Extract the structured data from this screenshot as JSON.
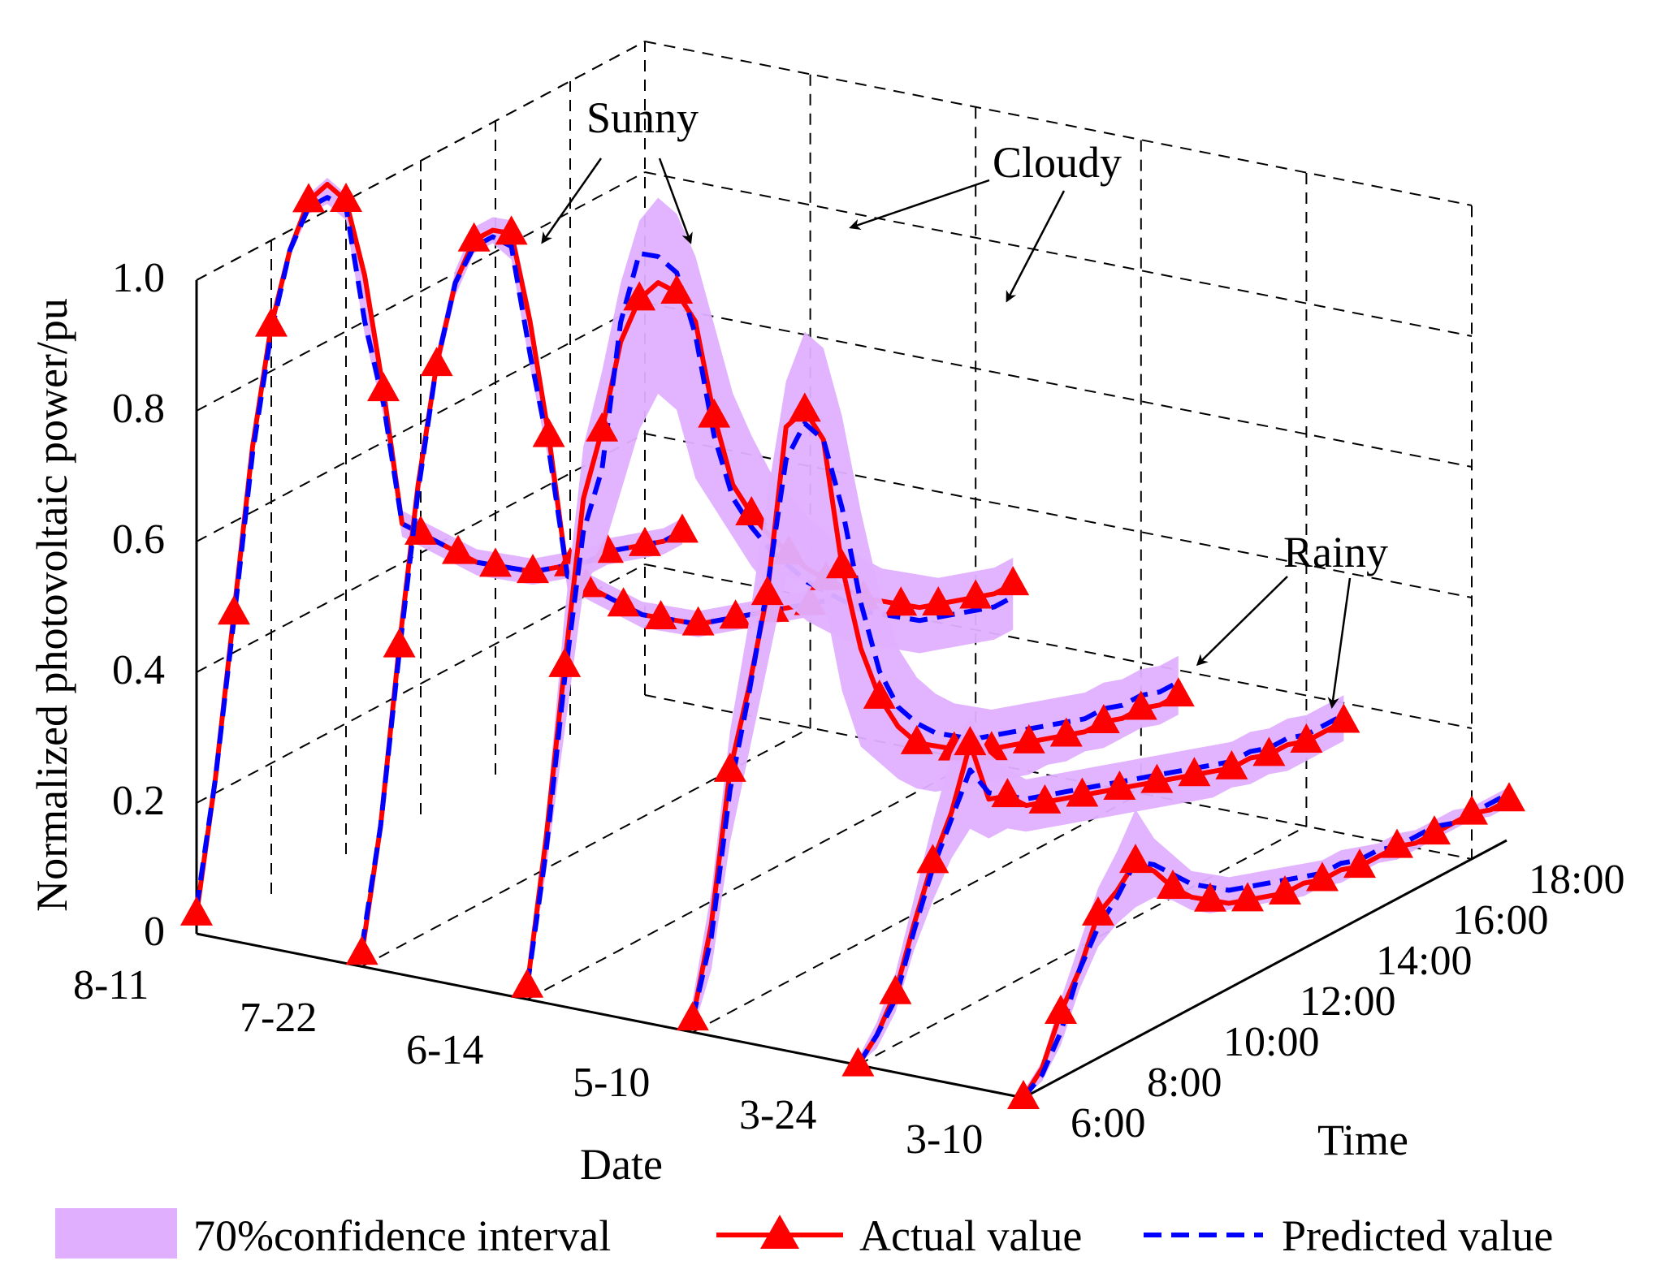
{
  "chart_data": {
    "type": "line",
    "subtype": "3d-waterfall",
    "title": "",
    "ylabel": "Normalized photovoltaic power/pu",
    "xlabel": "Date",
    "zlabel": "Time",
    "ylim": [
      0,
      1
    ],
    "yticks": [
      "0",
      "0.2",
      "0.4",
      "0.6",
      "0.8",
      "1.0"
    ],
    "date_ticks": [
      "8-11",
      "7-22",
      "6-14",
      "5-10",
      "3-24",
      "3-10"
    ],
    "time_ticks": [
      "6:00",
      "8:00",
      "10:00",
      "12:00",
      "14:00",
      "16:00",
      "18:00"
    ],
    "x_hours": [
      6,
      6.5,
      7,
      7.5,
      8,
      8.5,
      9,
      9.5,
      10,
      10.5,
      11,
      11.5,
      12,
      12.5,
      13,
      13.5,
      14,
      14.5,
      15,
      15.5,
      16,
      16.5,
      17,
      17.5,
      18,
      18.5,
      19
    ],
    "grid": true,
    "series": [
      {
        "date": "8-11",
        "weather": "Sunny",
        "actual": [
          0.03,
          0.22,
          0.46,
          0.7,
          0.87,
          0.97,
          1.03,
          1.04,
          1.0,
          0.87,
          0.68,
          0.46,
          0.43,
          0.4,
          0.37,
          0.34,
          0.32,
          0.3,
          0.28,
          0.27,
          0.26,
          0.25,
          0.25,
          0.24,
          0.23,
          0.22,
          0.22
        ],
        "predicted": [
          0.04,
          0.22,
          0.45,
          0.69,
          0.86,
          0.97,
          1.02,
          1.02,
          0.99,
          0.8,
          0.66,
          0.46,
          0.43,
          0.4,
          0.37,
          0.34,
          0.32,
          0.3,
          0.28,
          0.27,
          0.26,
          0.25,
          0.25,
          0.24,
          0.23,
          0.22,
          0.22
        ],
        "ci_lower": [
          0.02,
          0.21,
          0.44,
          0.68,
          0.85,
          0.96,
          1.01,
          1.01,
          0.97,
          0.78,
          0.64,
          0.44,
          0.41,
          0.38,
          0.35,
          0.32,
          0.3,
          0.28,
          0.26,
          0.25,
          0.24,
          0.23,
          0.23,
          0.22,
          0.21,
          0.2,
          0.2
        ],
        "ci_upper": [
          0.05,
          0.23,
          0.47,
          0.71,
          0.88,
          0.98,
          1.04,
          1.05,
          1.01,
          0.88,
          0.7,
          0.48,
          0.45,
          0.42,
          0.39,
          0.36,
          0.34,
          0.32,
          0.3,
          0.29,
          0.28,
          0.27,
          0.27,
          0.26,
          0.25,
          0.24,
          0.24
        ]
      },
      {
        "date": "7-22",
        "weather": "Sunny",
        "actual": [
          0.02,
          0.2,
          0.46,
          0.69,
          0.86,
          0.97,
          1.02,
          1.02,
          1.0,
          0.85,
          0.66,
          0.43,
          0.4,
          0.37,
          0.34,
          0.31,
          0.29,
          0.27,
          0.25,
          0.24,
          0.23,
          0.22,
          0.21,
          0.2,
          0.19,
          0.18,
          0.18
        ],
        "predicted": [
          0.03,
          0.2,
          0.45,
          0.68,
          0.86,
          0.97,
          1.01,
          1.01,
          0.98,
          0.8,
          0.64,
          0.43,
          0.4,
          0.37,
          0.34,
          0.31,
          0.29,
          0.27,
          0.25,
          0.24,
          0.23,
          0.22,
          0.21,
          0.2,
          0.19,
          0.18,
          0.18
        ],
        "ci_lower": [
          0.01,
          0.18,
          0.43,
          0.66,
          0.84,
          0.95,
          1.0,
          1.0,
          0.96,
          0.78,
          0.62,
          0.41,
          0.38,
          0.35,
          0.32,
          0.29,
          0.27,
          0.25,
          0.23,
          0.22,
          0.21,
          0.2,
          0.19,
          0.18,
          0.17,
          0.16,
          0.16
        ],
        "ci_upper": [
          0.04,
          0.22,
          0.48,
          0.71,
          0.88,
          0.99,
          1.04,
          1.04,
          1.02,
          0.87,
          0.68,
          0.45,
          0.42,
          0.39,
          0.36,
          0.33,
          0.31,
          0.29,
          0.27,
          0.26,
          0.25,
          0.24,
          0.23,
          0.22,
          0.21,
          0.2,
          0.2
        ]
      },
      {
        "date": "6-14",
        "weather": "Cloudy",
        "actual": [
          0.02,
          0.23,
          0.48,
          0.72,
          0.81,
          0.93,
          0.98,
          0.99,
          0.96,
          0.9,
          0.74,
          0.62,
          0.56,
          0.51,
          0.47,
          0.43,
          0.4,
          0.37,
          0.34,
          0.32,
          0.3,
          0.28,
          0.27,
          0.26,
          0.25,
          0.24,
          0.24
        ],
        "predicted": [
          0.02,
          0.21,
          0.46,
          0.67,
          0.75,
          0.96,
          1.05,
          1.03,
          0.99,
          0.88,
          0.71,
          0.6,
          0.54,
          0.49,
          0.45,
          0.41,
          0.38,
          0.35,
          0.32,
          0.3,
          0.28,
          0.26,
          0.25,
          0.24,
          0.23,
          0.22,
          0.22
        ],
        "ci_lower": [
          0.01,
          0.18,
          0.38,
          0.58,
          0.62,
          0.7,
          0.78,
          0.82,
          0.78,
          0.66,
          0.6,
          0.54,
          0.48,
          0.43,
          0.39,
          0.35,
          0.32,
          0.29,
          0.27,
          0.25,
          0.23,
          0.21,
          0.2,
          0.19,
          0.18,
          0.17,
          0.17
        ],
        "ci_upper": [
          0.04,
          0.26,
          0.56,
          0.8,
          0.9,
          1.02,
          1.1,
          1.12,
          1.08,
          1.0,
          0.88,
          0.76,
          0.68,
          0.61,
          0.56,
          0.51,
          0.47,
          0.43,
          0.4,
          0.37,
          0.35,
          0.33,
          0.31,
          0.3,
          0.29,
          0.28,
          0.28
        ]
      },
      {
        "date": "5-10",
        "weather": "Cloudy",
        "actual": [
          0.02,
          0.15,
          0.37,
          0.48,
          0.61,
          0.85,
          0.86,
          0.8,
          0.59,
          0.45,
          0.36,
          0.3,
          0.26,
          0.24,
          0.22,
          0.2,
          0.19,
          0.18,
          0.17,
          0.16,
          0.15,
          0.14,
          0.14,
          0.13,
          0.13,
          0.12,
          0.12
        ],
        "predicted": [
          0.02,
          0.13,
          0.34,
          0.47,
          0.62,
          0.8,
          0.84,
          0.8,
          0.68,
          0.52,
          0.4,
          0.33,
          0.29,
          0.26,
          0.24,
          0.22,
          0.21,
          0.2,
          0.19,
          0.18,
          0.17,
          0.16,
          0.16,
          0.15,
          0.15,
          0.14,
          0.14
        ],
        "ci_lower": [
          0.0,
          0.08,
          0.26,
          0.38,
          0.5,
          0.62,
          0.6,
          0.56,
          0.4,
          0.3,
          0.26,
          0.22,
          0.19,
          0.17,
          0.16,
          0.15,
          0.14,
          0.13,
          0.12,
          0.12,
          0.11,
          0.11,
          0.1,
          0.1,
          0.1,
          0.09,
          0.09
        ],
        "ci_upper": [
          0.05,
          0.2,
          0.43,
          0.58,
          0.76,
          0.92,
          0.98,
          0.94,
          0.82,
          0.66,
          0.52,
          0.42,
          0.36,
          0.32,
          0.29,
          0.27,
          0.25,
          0.24,
          0.23,
          0.22,
          0.21,
          0.2,
          0.2,
          0.19,
          0.19,
          0.18,
          0.18
        ]
      },
      {
        "date": "3-24",
        "weather": "Rainy",
        "actual": [
          0.0,
          0.03,
          0.08,
          0.17,
          0.25,
          0.31,
          0.4,
          0.3,
          0.29,
          0.26,
          0.25,
          0.24,
          0.23,
          0.22,
          0.21,
          0.2,
          0.19,
          0.18,
          0.17,
          0.16,
          0.15,
          0.15,
          0.14,
          0.14,
          0.13,
          0.13,
          0.13
        ],
        "predicted": [
          0.0,
          0.03,
          0.07,
          0.16,
          0.24,
          0.3,
          0.36,
          0.31,
          0.29,
          0.27,
          0.26,
          0.25,
          0.24,
          0.23,
          0.22,
          0.21,
          0.2,
          0.19,
          0.18,
          0.17,
          0.16,
          0.16,
          0.15,
          0.15,
          0.14,
          0.14,
          0.14
        ],
        "ci_lower": [
          0.0,
          0.01,
          0.05,
          0.13,
          0.19,
          0.24,
          0.27,
          0.24,
          0.24,
          0.22,
          0.21,
          0.2,
          0.19,
          0.18,
          0.17,
          0.16,
          0.15,
          0.14,
          0.13,
          0.12,
          0.12,
          0.11,
          0.11,
          0.1,
          0.1,
          0.1,
          0.1
        ],
        "ci_upper": [
          0.01,
          0.05,
          0.11,
          0.21,
          0.31,
          0.4,
          0.44,
          0.37,
          0.33,
          0.3,
          0.29,
          0.28,
          0.27,
          0.26,
          0.25,
          0.24,
          0.23,
          0.22,
          0.21,
          0.2,
          0.19,
          0.19,
          0.18,
          0.18,
          0.17,
          0.17,
          0.17
        ]
      },
      {
        "date": "3-10",
        "weather": "Rainy",
        "actual": [
          0.0,
          0.03,
          0.1,
          0.15,
          0.22,
          0.24,
          0.27,
          0.24,
          0.2,
          0.17,
          0.15,
          0.13,
          0.12,
          0.11,
          0.1,
          0.1,
          0.09,
          0.09,
          0.08,
          0.08,
          0.08,
          0.07,
          0.07,
          0.07,
          0.07,
          0.06,
          0.06
        ],
        "predicted": [
          0.0,
          0.02,
          0.07,
          0.15,
          0.2,
          0.23,
          0.27,
          0.25,
          0.22,
          0.19,
          0.17,
          0.15,
          0.14,
          0.13,
          0.12,
          0.11,
          0.1,
          0.1,
          0.09,
          0.09,
          0.08,
          0.08,
          0.08,
          0.07,
          0.07,
          0.07,
          0.07
        ],
        "ci_lower": [
          0.0,
          0.01,
          0.05,
          0.12,
          0.17,
          0.19,
          0.2,
          0.2,
          0.18,
          0.15,
          0.13,
          0.12,
          0.11,
          0.1,
          0.09,
          0.08,
          0.08,
          0.07,
          0.07,
          0.07,
          0.06,
          0.06,
          0.06,
          0.06,
          0.06,
          0.05,
          0.05
        ],
        "ci_upper": [
          0.01,
          0.04,
          0.12,
          0.19,
          0.26,
          0.3,
          0.35,
          0.29,
          0.25,
          0.21,
          0.19,
          0.17,
          0.16,
          0.15,
          0.14,
          0.13,
          0.12,
          0.12,
          0.11,
          0.1,
          0.1,
          0.09,
          0.09,
          0.09,
          0.08,
          0.08,
          0.08
        ]
      }
    ],
    "annotations": [
      {
        "label": "Sunny",
        "points_to": [
          "8-11",
          "7-22"
        ]
      },
      {
        "label": "Cloudy",
        "points_to": [
          "6-14",
          "5-10"
        ]
      },
      {
        "label": "Rainy",
        "points_to": [
          "3-24",
          "3-10"
        ]
      }
    ],
    "legend": {
      "position": "bottom",
      "items": [
        "70%confidence interval",
        "Actual value",
        "Predicted value"
      ]
    },
    "colors": {
      "actual": "#ff0000",
      "predicted": "#0000ff",
      "ci_fill": "#e0b0ff",
      "grid": "#000000"
    }
  }
}
